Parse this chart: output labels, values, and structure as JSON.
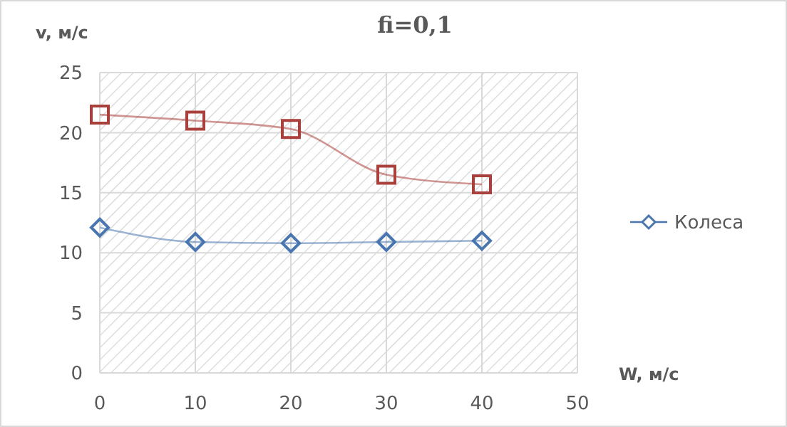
{
  "chart_data": {
    "type": "line",
    "title": "fi=0,1",
    "xlabel": "W, м/с",
    "ylabel": "v, м/с",
    "x": [
      0,
      10,
      20,
      30,
      40
    ],
    "series": [
      {
        "color": "#a9403c",
        "marker": "square",
        "values": [
          21.5,
          21.0,
          20.3,
          16.5,
          15.7
        ]
      },
      {
        "name": "Колеса",
        "color": "#4a76b0",
        "marker": "diamond",
        "values": [
          12.1,
          10.9,
          10.8,
          10.9,
          11.0
        ]
      }
    ],
    "xlim": [
      0,
      50
    ],
    "xticks": [
      0,
      10,
      20,
      30,
      40,
      50
    ],
    "ylim": [
      0,
      25
    ],
    "yticks": [
      0,
      5,
      10,
      15,
      20,
      25
    ],
    "grid": true,
    "legend": "right"
  }
}
